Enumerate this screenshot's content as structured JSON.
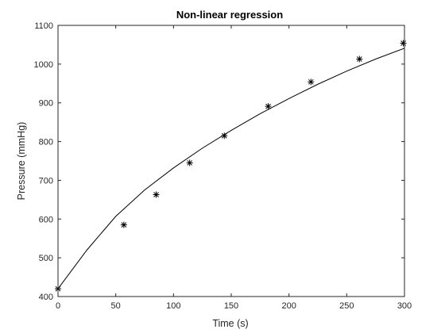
{
  "chart_data": {
    "type": "scatter",
    "title": "Non-linear regression",
    "xlabel": "Time (s)",
    "ylabel": "Pressure (mmHg)",
    "xlim": [
      0,
      300
    ],
    "ylim": [
      400,
      1100
    ],
    "xticks": [
      0,
      50,
      100,
      150,
      200,
      250,
      300
    ],
    "yticks": [
      400,
      500,
      600,
      700,
      800,
      900,
      1000,
      1100
    ],
    "grid": false,
    "legend": "none",
    "box": true,
    "colors": {
      "axis": "#262626",
      "marker": "#000000",
      "fit_line": "#000000"
    },
    "series": [
      {
        "kind": "markers",
        "marker": "asterisk",
        "x": [
          0,
          57,
          85,
          114,
          144,
          182,
          219,
          261,
          299
        ],
        "y": [
          420,
          585,
          663,
          745,
          815,
          891,
          954,
          1013,
          1054
        ]
      },
      {
        "kind": "line",
        "x": [
          0,
          25,
          50,
          75,
          100,
          125,
          150,
          175,
          200,
          225,
          250,
          275,
          300
        ],
        "y": [
          420,
          520,
          607,
          675,
          732,
          783,
          829,
          872,
          911,
          948,
          982,
          1013,
          1041
        ]
      }
    ]
  }
}
